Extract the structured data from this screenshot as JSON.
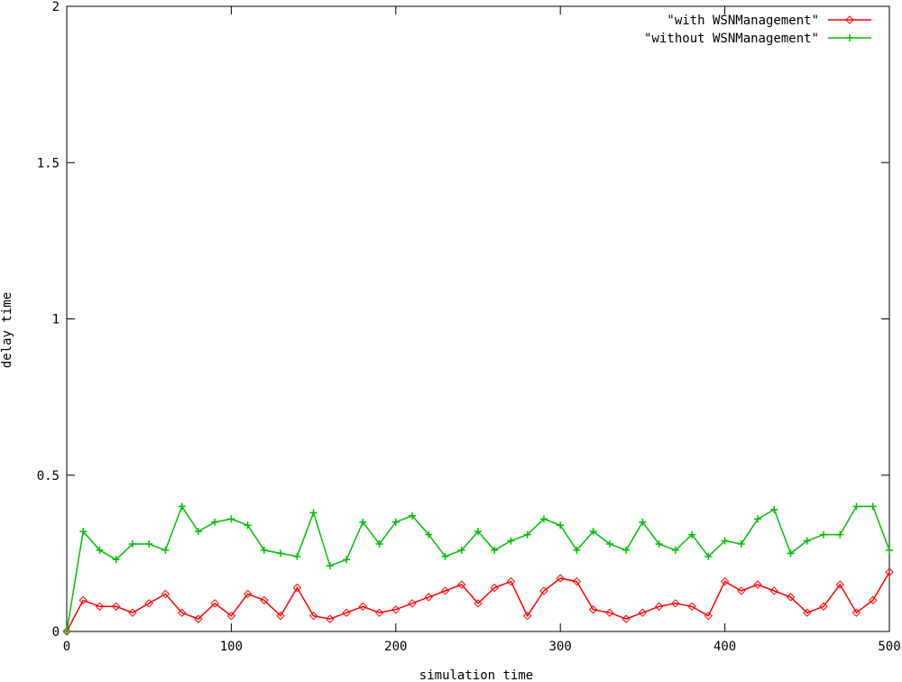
{
  "chart_data": {
    "type": "line",
    "title": "",
    "xlabel": "simulation time",
    "ylabel": "delay time",
    "xlim": [
      0,
      500
    ],
    "ylim": [
      0,
      2
    ],
    "xticks": [
      0,
      100,
      200,
      300,
      400,
      500
    ],
    "xtick_labels": [
      "0",
      "100",
      "200",
      "300",
      "400",
      "500"
    ],
    "yticks": [
      0,
      0.5,
      1,
      1.5,
      2
    ],
    "ytick_labels": [
      "0",
      "0.5",
      "1",
      "1.5",
      "2"
    ],
    "grid": false,
    "legend_position": "top-right",
    "x": [
      0,
      10,
      20,
      30,
      40,
      50,
      60,
      70,
      80,
      90,
      100,
      110,
      120,
      130,
      140,
      150,
      160,
      170,
      180,
      190,
      200,
      210,
      220,
      230,
      240,
      250,
      260,
      270,
      280,
      290,
      300,
      310,
      320,
      330,
      340,
      350,
      360,
      370,
      380,
      390,
      400,
      410,
      420,
      430,
      440,
      450,
      460,
      470,
      480,
      490,
      500
    ],
    "series": [
      {
        "name": "\"with WSNManagement\"",
        "color": "#ff0000",
        "marker": "diamond",
        "values": [
          0,
          0.1,
          0.08,
          0.08,
          0.06,
          0.09,
          0.12,
          0.06,
          0.04,
          0.09,
          0.05,
          0.12,
          0.1,
          0.05,
          0.14,
          0.05,
          0.04,
          0.06,
          0.08,
          0.06,
          0.07,
          0.09,
          0.11,
          0.13,
          0.15,
          0.09,
          0.14,
          0.16,
          0.05,
          0.13,
          0.17,
          0.16,
          0.07,
          0.06,
          0.04,
          0.06,
          0.08,
          0.09,
          0.08,
          0.05,
          0.16,
          0.13,
          0.15,
          0.13,
          0.11,
          0.06,
          0.08,
          0.15,
          0.06,
          0.1,
          0.19
        ]
      },
      {
        "name": "\"without WSNManagement\"",
        "color": "#00c000",
        "marker": "plus",
        "values": [
          0,
          0.32,
          0.26,
          0.23,
          0.28,
          0.28,
          0.26,
          0.4,
          0.32,
          0.35,
          0.36,
          0.34,
          0.26,
          0.25,
          0.24,
          0.38,
          0.21,
          0.23,
          0.35,
          0.28,
          0.35,
          0.37,
          0.31,
          0.24,
          0.26,
          0.32,
          0.26,
          0.29,
          0.31,
          0.36,
          0.34,
          0.26,
          0.32,
          0.28,
          0.26,
          0.35,
          0.28,
          0.26,
          0.31,
          0.24,
          0.29,
          0.28,
          0.36,
          0.39,
          0.25,
          0.29,
          0.31,
          0.31,
          0.4,
          0.4,
          0.26
        ]
      }
    ]
  }
}
